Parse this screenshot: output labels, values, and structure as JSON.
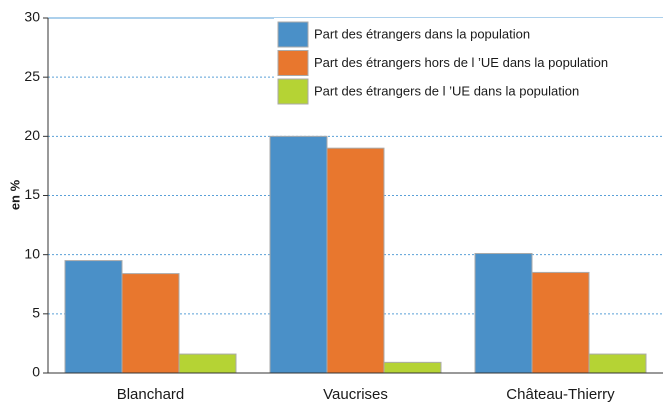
{
  "chart_data": {
    "type": "bar",
    "y_label": "en %",
    "categories": [
      "Blanchard",
      "Vaucrises",
      "Château-Thierry"
    ],
    "series": [
      {
        "name": "Part des étrangers dans la population",
        "color": "#4a90c8",
        "values": [
          9.5,
          20,
          10.1
        ]
      },
      {
        "name": "Part des étrangers hors de l ’UE dans la population",
        "color": "#e8772e",
        "values": [
          8.4,
          19,
          8.5
        ]
      },
      {
        "name": "Part des étrangers de l ’UE dans la population",
        "color": "#b5d334",
        "values": [
          1.6,
          0.9,
          1.6
        ]
      }
    ],
    "ylim": [
      0,
      30
    ],
    "yticks": [
      0,
      5,
      10,
      15,
      20,
      25,
      30
    ],
    "grid": true,
    "legend": "top-right"
  }
}
